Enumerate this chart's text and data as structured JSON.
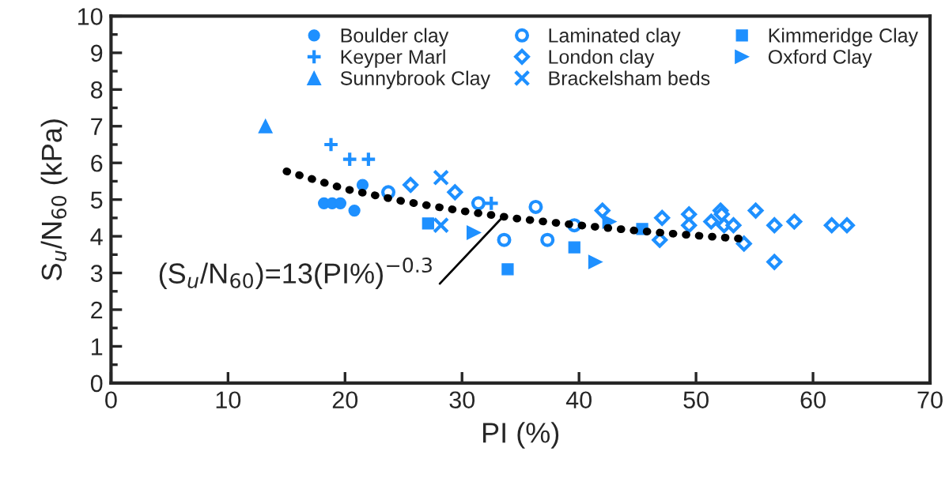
{
  "chart_data": {
    "type": "scatter",
    "xlabel": "PI (%)",
    "ylabel": "S$_{u}$/N$_{60}$ (kPa)",
    "xlim": [
      0,
      70
    ],
    "xticks": [
      0,
      10,
      20,
      30,
      40,
      50,
      60,
      70
    ],
    "ylim": [
      0,
      10
    ],
    "yticks": [
      0,
      1,
      2,
      3,
      4,
      5,
      6,
      7,
      8,
      9,
      10
    ],
    "grid": false,
    "legend": "top right",
    "annotations": [
      {
        "text": "(S$_{u}$/N$_{60}$)=13(PI%)$^{−0.3}$",
        "x": 33.7,
        "y": 4.6
      }
    ],
    "series": [
      {
        "name": "Boulder clay",
        "color": "#1e90ff",
        "marker": "circle",
        "x": [
          18.2,
          18.9,
          19.6,
          20.8,
          21.5
        ],
        "values": [
          4.9,
          4.9,
          4.9,
          4.7,
          5.4
        ]
      },
      {
        "name": "Keyper Marl",
        "color": "#1e90ff",
        "marker": "plus",
        "x": [
          18.8,
          20.4,
          22.0,
          32.5
        ],
        "values": [
          6.5,
          6.1,
          6.1,
          4.9
        ]
      },
      {
        "name": "Sunnybrook Clay",
        "color": "#1e90ff",
        "marker": "triangle",
        "x": [
          13.2
        ],
        "values": [
          7.0
        ]
      },
      {
        "name": "Laminated clay",
        "color": "#1e90ff",
        "marker": "open circle",
        "x": [
          23.7,
          31.4,
          36.3,
          33.6,
          37.3,
          39.6
        ],
        "values": [
          5.2,
          4.9,
          4.8,
          3.9,
          3.9,
          4.3
        ]
      },
      {
        "name": "London clay",
        "color": "#1e90ff",
        "marker": "diamond",
        "x": [
          25.6,
          29.4,
          42.0,
          47.1,
          46.9,
          49.4,
          49.4,
          51.3,
          52.1,
          52.2,
          52.4,
          53.2,
          54.1,
          55.1,
          56.7,
          56.7,
          58.4,
          61.6,
          62.9
        ],
        "values": [
          5.4,
          5.2,
          4.7,
          4.5,
          3.9,
          4.6,
          4.3,
          4.4,
          4.7,
          4.6,
          4.3,
          4.3,
          3.8,
          4.7,
          4.3,
          3.3,
          4.4,
          4.3,
          4.3
        ]
      },
      {
        "name": "Brackelsham beds",
        "color": "#1e90ff",
        "marker": "x",
        "x": [
          28.2,
          28.2
        ],
        "values": [
          5.6,
          4.3
        ]
      },
      {
        "name": "Kimmeridge Clay",
        "color": "#1e90ff",
        "marker": "square",
        "x": [
          27.1,
          33.9,
          39.6,
          45.4
        ],
        "values": [
          4.35,
          3.1,
          3.7,
          4.2
        ]
      },
      {
        "name": "Oxford Clay",
        "color": "#1e90ff",
        "marker": "triangle",
        "x": [
          31.0,
          41.4,
          42.6
        ],
        "values": [
          4.1,
          3.3,
          4.4
        ]
      },
      {
        "type": "line",
        "color": "#000000",
        "line_style": "dotted",
        "x": [
          15,
          20,
          25,
          30,
          35,
          40,
          45,
          50,
          54
        ],
        "values": [
          5.77,
          5.29,
          4.95,
          4.69,
          4.47,
          4.3,
          4.15,
          4.02,
          3.93
        ]
      }
    ]
  }
}
